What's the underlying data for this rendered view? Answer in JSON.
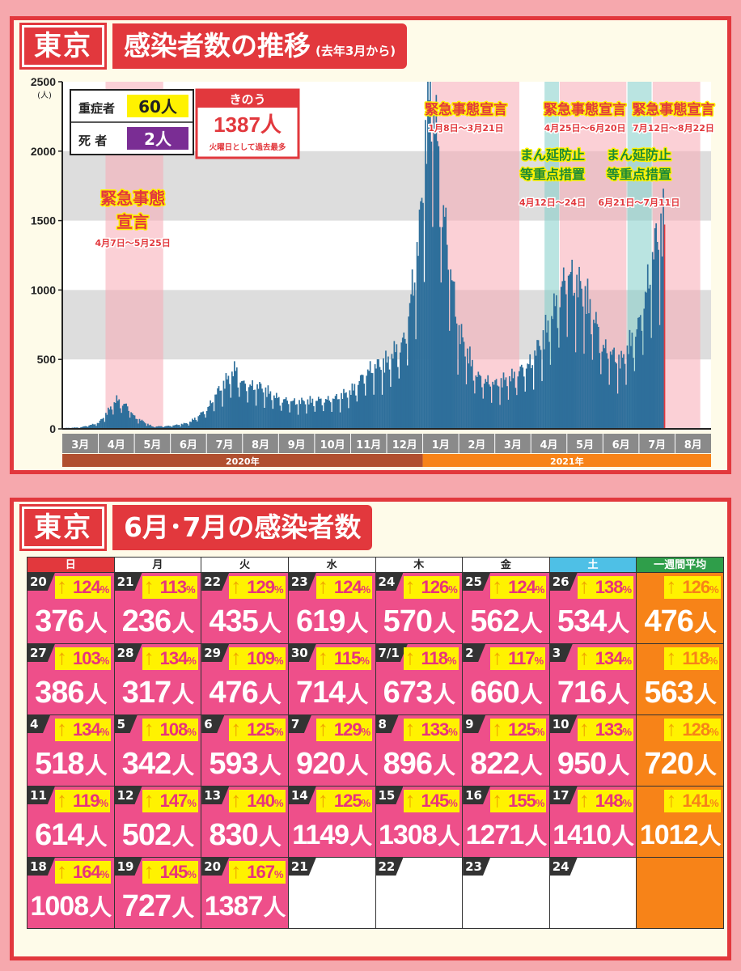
{
  "panel1": {
    "city": "東京",
    "title": "感染者数の推移",
    "title_note": "(去年3月から)",
    "severe_label": "重症者",
    "severe_value": "60人",
    "death_label": "死 者",
    "death_value": "2人",
    "yesterday_label": "きのう",
    "yesterday_value": "1387人",
    "yesterday_note": "火曜日として過去最多"
  },
  "chart_data": {
    "type": "bar",
    "y_unit": "(人)",
    "ylim": [
      0,
      2500
    ],
    "y_ticks": [
      0,
      500,
      1000,
      1500,
      2000,
      2500
    ],
    "months": [
      "3月",
      "4月",
      "5月",
      "6月",
      "7月",
      "8月",
      "9月",
      "10月",
      "11月",
      "12月",
      "1月",
      "2月",
      "3月",
      "4月",
      "5月",
      "6月",
      "7月",
      "8月"
    ],
    "years": [
      {
        "label": "2020年",
        "from": 0,
        "to": 10
      },
      {
        "label": "2021年",
        "from": 10,
        "to": 18
      }
    ],
    "declarations": [
      {
        "label": "緊急事態宣言",
        "dates": "4月7日～5月25日",
        "start": 1.2,
        "end": 2.8,
        "type": "emergency"
      },
      {
        "label": "緊急事態宣言",
        "dates": "1月8日～3月21日",
        "start": 10.25,
        "end": 12.68,
        "type": "emergency"
      },
      {
        "label": "まん延防止等重点措置",
        "dates": "4月12日～24日",
        "start": 13.38,
        "end": 13.78,
        "type": "priority"
      },
      {
        "label": "緊急事態宣言",
        "dates": "4月25日～6月20日",
        "start": 13.8,
        "end": 15.65,
        "type": "emergency"
      },
      {
        "label": "まん延防止等重点措置",
        "dates": "6月21日～7月11日",
        "start": 15.68,
        "end": 16.35,
        "type": "priority"
      },
      {
        "label": "緊急事態宣言",
        "dates": "7月12日～8月22日",
        "start": 16.38,
        "end": 17.7,
        "type": "emergency"
      }
    ],
    "monthly_trend": [
      {
        "month": "3月",
        "x": [
          0.0,
          0.5,
          1.0
        ],
        "values": [
          5,
          10,
          40
        ]
      },
      {
        "month": "4月",
        "x": [
          1.2,
          1.5,
          1.8
        ],
        "values": [
          100,
          195,
          150
        ]
      },
      {
        "month": "5月",
        "x": [
          2.0,
          2.5,
          3.0
        ],
        "values": [
          80,
          15,
          20
        ]
      },
      {
        "month": "6月",
        "x": [
          3.5,
          4.0
        ],
        "values": [
          40,
          130
        ]
      },
      {
        "month": "7月",
        "x": [
          4.3,
          4.8,
          5.0
        ],
        "values": [
          250,
          400,
          300
        ]
      },
      {
        "month": "8月",
        "x": [
          5.5
        ],
        "values": [
          280
        ]
      },
      {
        "month": "9月",
        "x": [
          6.0,
          6.5
        ],
        "values": [
          200,
          180
        ]
      },
      {
        "month": "10月",
        "x": [
          7.0,
          7.5
        ],
        "values": [
          190,
          200
        ]
      },
      {
        "month": "11月",
        "x": [
          8.0,
          8.5
        ],
        "values": [
          250,
          400
        ]
      },
      {
        "month": "12月",
        "x": [
          9.0,
          9.5,
          9.9
        ],
        "values": [
          450,
          600,
          1300
        ]
      },
      {
        "month": "1月",
        "x": [
          10.2,
          10.5,
          10.8
        ],
        "values": [
          2447,
          1600,
          1000
        ]
      },
      {
        "month": "2月",
        "x": [
          11.0,
          11.5
        ],
        "values": [
          650,
          350
        ]
      },
      {
        "month": "3月",
        "x": [
          12.0,
          12.5
        ],
        "values": [
          300,
          350
        ]
      },
      {
        "month": "4月",
        "x": [
          13.0,
          13.5
        ],
        "values": [
          450,
          700
        ]
      },
      {
        "month": "5月",
        "x": [
          14.0,
          14.5,
          14.8
        ],
        "values": [
          1050,
          900,
          700
        ]
      },
      {
        "month": "6月",
        "x": [
          15.0,
          15.5
        ],
        "values": [
          550,
          450
        ]
      },
      {
        "month": "7月",
        "x": [
          16.0,
          16.5,
          16.7
        ],
        "values": [
          700,
          1300,
          1387
        ]
      }
    ]
  },
  "panel2": {
    "city": "東京",
    "title": "6月･7月の感染者数",
    "days": [
      "日",
      "月",
      "火",
      "水",
      "木",
      "金",
      "土",
      "一週間平均"
    ],
    "pct_unit": "%",
    "count_unit": "人",
    "weeks": [
      {
        "cells": [
          {
            "date": "20",
            "pct": "124",
            "count": "376"
          },
          {
            "date": "21",
            "pct": "113",
            "count": "236"
          },
          {
            "date": "22",
            "pct": "129",
            "count": "435"
          },
          {
            "date": "23",
            "pct": "124",
            "count": "619"
          },
          {
            "date": "24",
            "pct": "126",
            "count": "570"
          },
          {
            "date": "25",
            "pct": "124",
            "count": "562"
          },
          {
            "date": "26",
            "pct": "138",
            "count": "534"
          }
        ],
        "avg": {
          "pct": "126",
          "count": "476"
        }
      },
      {
        "cells": [
          {
            "date": "27",
            "pct": "103",
            "count": "386"
          },
          {
            "date": "28",
            "pct": "134",
            "count": "317"
          },
          {
            "date": "29",
            "pct": "109",
            "count": "476"
          },
          {
            "date": "30",
            "pct": "115",
            "count": "714"
          },
          {
            "date": "7/1",
            "pct": "118",
            "count": "673"
          },
          {
            "date": "2",
            "pct": "117",
            "count": "660"
          },
          {
            "date": "3",
            "pct": "134",
            "count": "716"
          }
        ],
        "avg": {
          "pct": "118",
          "count": "563"
        }
      },
      {
        "cells": [
          {
            "date": "4",
            "pct": "134",
            "count": "518"
          },
          {
            "date": "5",
            "pct": "108",
            "count": "342"
          },
          {
            "date": "6",
            "pct": "125",
            "count": "593"
          },
          {
            "date": "7",
            "pct": "129",
            "count": "920"
          },
          {
            "date": "8",
            "pct": "133",
            "count": "896"
          },
          {
            "date": "9",
            "pct": "125",
            "count": "822"
          },
          {
            "date": "10",
            "pct": "133",
            "count": "950"
          }
        ],
        "avg": {
          "pct": "128",
          "count": "720"
        }
      },
      {
        "cells": [
          {
            "date": "11",
            "pct": "119",
            "count": "614"
          },
          {
            "date": "12",
            "pct": "147",
            "count": "502"
          },
          {
            "date": "13",
            "pct": "140",
            "count": "830"
          },
          {
            "date": "14",
            "pct": "125",
            "count": "1149"
          },
          {
            "date": "15",
            "pct": "145",
            "count": "1308"
          },
          {
            "date": "16",
            "pct": "155",
            "count": "1271"
          },
          {
            "date": "17",
            "pct": "148",
            "count": "1410"
          }
        ],
        "avg": {
          "pct": "141",
          "count": "1012"
        }
      },
      {
        "cells": [
          {
            "date": "18",
            "pct": "164",
            "count": "1008"
          },
          {
            "date": "19",
            "pct": "145",
            "count": "727"
          },
          {
            "date": "20",
            "pct": "167",
            "count": "1387"
          },
          {
            "date": "21",
            "pct": "",
            "count": ""
          },
          {
            "date": "22",
            "pct": "",
            "count": ""
          },
          {
            "date": "23",
            "pct": "",
            "count": ""
          },
          {
            "date": "24",
            "pct": "",
            "count": ""
          }
        ],
        "avg": {
          "pct": "",
          "count": ""
        }
      }
    ]
  }
}
